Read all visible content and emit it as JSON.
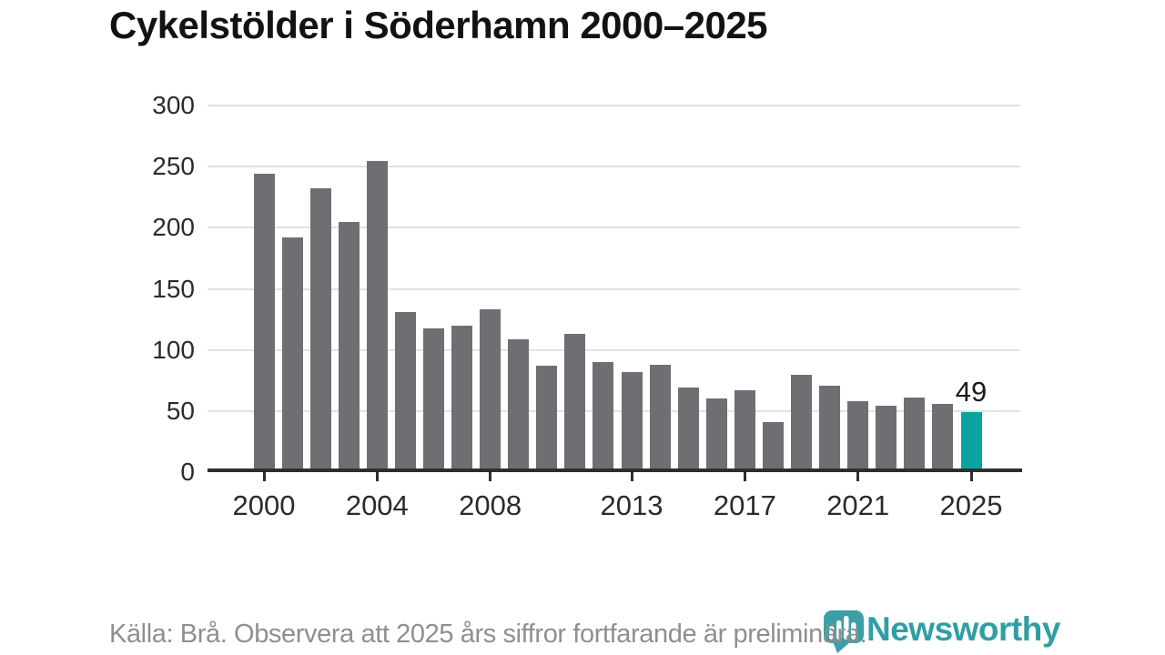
{
  "title": "Cykelstölder i Söderhamn 2000–2025",
  "chart_data": {
    "type": "bar",
    "title": "Cykelstölder i Söderhamn 2000–2025",
    "xlabel": "",
    "ylabel": "",
    "x": [
      2000,
      2001,
      2002,
      2003,
      2004,
      2005,
      2006,
      2007,
      2008,
      2009,
      2010,
      2011,
      2012,
      2013,
      2014,
      2015,
      2016,
      2017,
      2018,
      2019,
      2020,
      2021,
      2022,
      2023,
      2024,
      2025
    ],
    "values": [
      244,
      192,
      232,
      205,
      255,
      131,
      118,
      120,
      133,
      109,
      87,
      113,
      90,
      82,
      88,
      69,
      60,
      67,
      41,
      80,
      71,
      58,
      54,
      61,
      56,
      49
    ],
    "ylim": [
      0,
      300
    ],
    "y_ticks": [
      0,
      50,
      100,
      150,
      200,
      250,
      300
    ],
    "x_tick_labels": [
      "2000",
      "2004",
      "2008",
      "2013",
      "2017",
      "2021",
      "2025"
    ],
    "x_tick_years": [
      2000,
      2004,
      2008,
      2013,
      2017,
      2021,
      2025
    ],
    "grid": true,
    "legend_position": "none",
    "bar_color": "#6f6e73",
    "highlight_year": 2025,
    "highlight_color": "#0aa3a1",
    "highlight_value_label": "49"
  },
  "footer": {
    "source_note": "Källa: Brå. Observera att 2025 års siffror fortfarande är preliminära."
  },
  "branding": {
    "wordmark": "Newsworthy",
    "logo_icon": "newsworthy-speech-bubble-chart-icon",
    "teal": "#2f9fa4"
  }
}
